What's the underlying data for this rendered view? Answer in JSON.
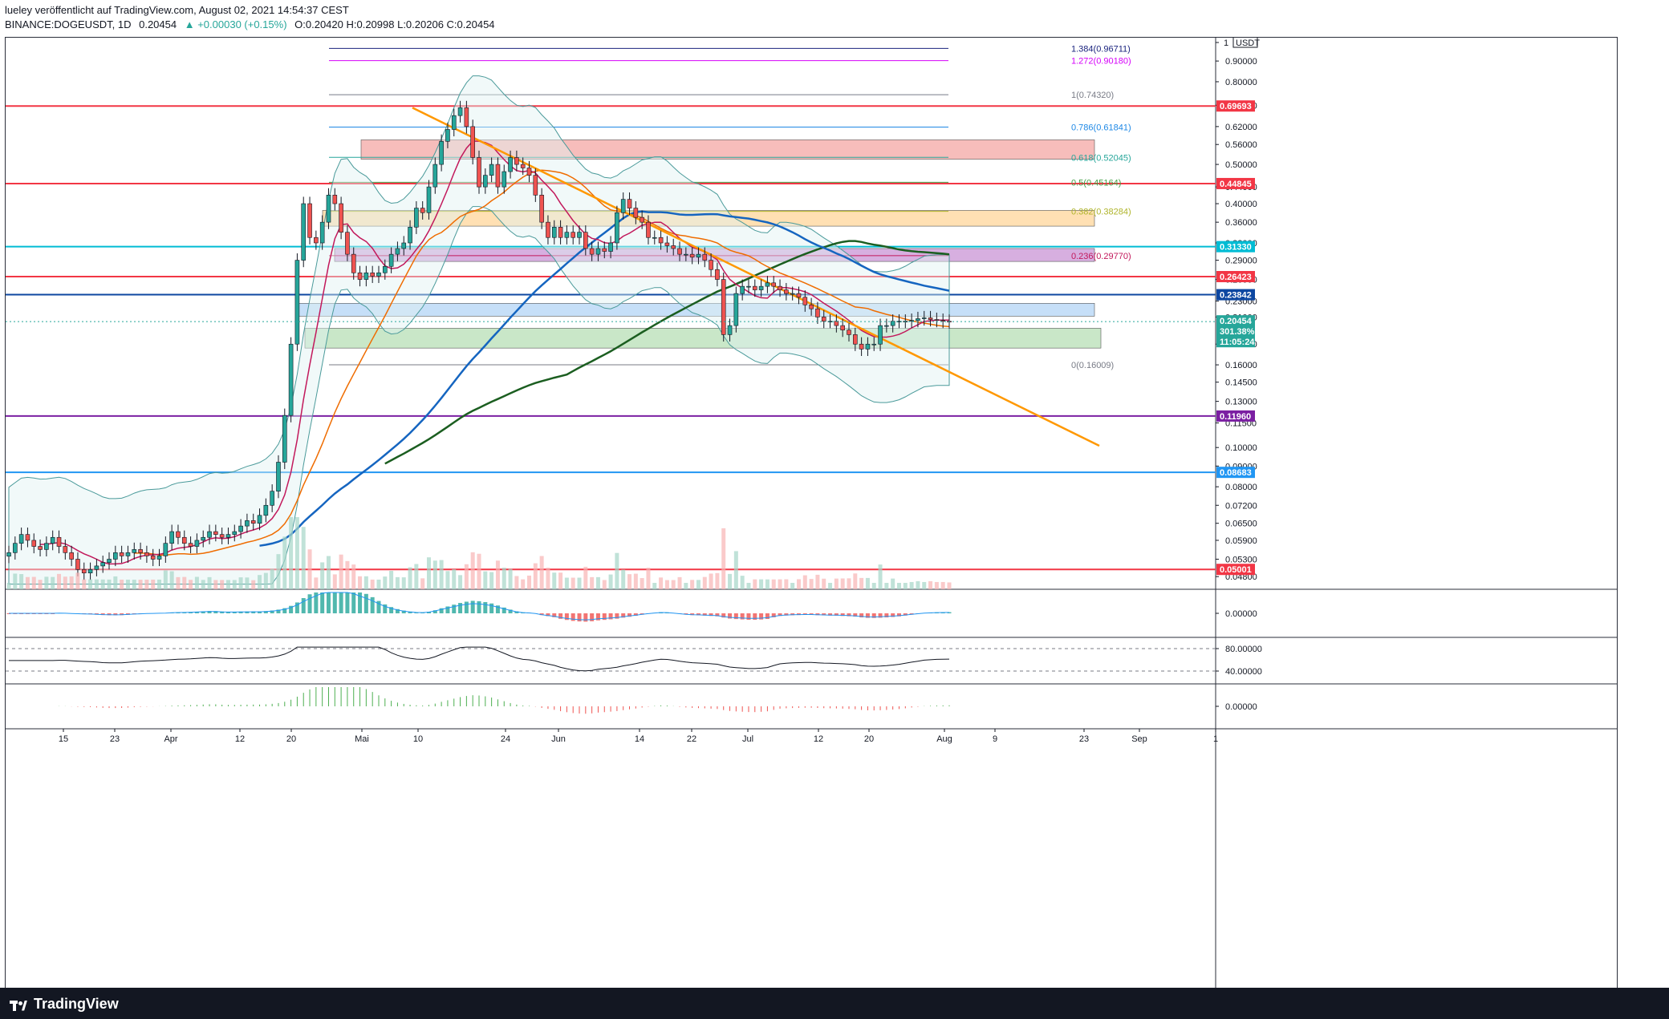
{
  "header": {
    "line1": "lueley veröffentlicht auf TradingView.com, August 02, 2021 14:54:37 CEST",
    "symbol": "BINANCE:DOGEUSDT, 1D",
    "last": "0.20454",
    "change": "▲ +0.00030 (+0.15%)",
    "ohlc": "O:0.20420 H:0.20998 L:0.20206 C:0.20454"
  },
  "footer": {
    "brand": "TradingView",
    "logo_icon": "tradingview-logo-icon"
  },
  "chart_data": {
    "type": "candlestick",
    "symbol": "BINANCE:DOGEUSDT",
    "interval": "1D",
    "currency": "USDT",
    "y_scale": "log",
    "ylim": [
      0.045,
      1.0
    ],
    "price_ticks": [
      "1 USDT",
      "0.90000",
      "0.80000",
      "0.70000",
      "0.62000",
      "0.56000",
      "0.50000",
      "0.44000",
      "0.40000",
      "0.36000",
      "0.32000",
      "0.29000",
      "0.26000",
      "0.23000",
      "0.21000",
      "0.18000",
      "0.16000",
      "0.14500",
      "0.13000",
      "0.11500",
      "0.10000",
      "0.09000",
      "0.08000",
      "0.07200",
      "0.06500",
      "0.05900",
      "0.05300",
      "0.04800"
    ],
    "x_ticks": [
      "15",
      "23",
      "Apr",
      "12",
      "20",
      "Mai",
      "10",
      "24",
      "Jun",
      "14",
      "22",
      "Jul",
      "12",
      "20",
      "Aug",
      "9",
      "23",
      "Sep",
      "1"
    ],
    "last_price": {
      "value": "0.20454",
      "pct": "301.38%",
      "countdown": "11:05:24"
    },
    "horizontal_levels": [
      {
        "value": "0.69693",
        "color": "#f23645"
      },
      {
        "value": "0.44845",
        "color": "#f23645"
      },
      {
        "value": "0.31330",
        "color": "#00bcd4"
      },
      {
        "value": "0.26423",
        "color": "#f23645"
      },
      {
        "value": "0.23842",
        "color": "#0d47a1"
      },
      {
        "value": "0.11960",
        "color": "#7b1fa2"
      },
      {
        "value": "0.08683",
        "color": "#2196f3"
      },
      {
        "value": "0.05001",
        "color": "#f23645"
      }
    ],
    "fib_levels": [
      {
        "label": "1.384(0.96711)",
        "value": 0.96711,
        "color": "#1a237e"
      },
      {
        "label": "1.272(0.90180)",
        "value": 0.9018,
        "color": "#d500f9"
      },
      {
        "label": "1(0.74320)",
        "value": 0.7432,
        "color": "#787b86"
      },
      {
        "label": "0.786(0.61841)",
        "value": 0.61841,
        "color": "#1e88e5"
      },
      {
        "label": "0.618(0.52045)",
        "value": 0.52045,
        "color": "#26a69a"
      },
      {
        "label": "0.5(0.45164)",
        "value": 0.45164,
        "color": "#43a047"
      },
      {
        "label": "0.382(0.38284)",
        "value": 0.38284,
        "color": "#afb42b"
      },
      {
        "label": "0.236(0.29770)",
        "value": 0.2977,
        "color": "#c2185b"
      },
      {
        "label": "0(0.16009)",
        "value": 0.16009,
        "color": "#787b86"
      }
    ],
    "zones": [
      {
        "name": "red-zone",
        "top": 0.575,
        "bottom": 0.515,
        "color": "#f4a7a4"
      },
      {
        "name": "orange-zone",
        "top": 0.385,
        "bottom": 0.352,
        "color": "#ffd59a"
      },
      {
        "name": "purple-zone",
        "top": 0.31,
        "bottom": 0.288,
        "color": "#c994d6"
      },
      {
        "name": "blue-zone",
        "top": 0.227,
        "bottom": 0.211,
        "color": "#b3d4f5"
      },
      {
        "name": "green-zone",
        "top": 0.197,
        "bottom": 0.176,
        "color": "#b7dfb5"
      }
    ],
    "close_series": [
      0.055,
      0.058,
      0.061,
      0.059,
      0.057,
      0.056,
      0.058,
      0.06,
      0.057,
      0.055,
      0.053,
      0.05,
      0.049,
      0.05,
      0.051,
      0.052,
      0.053,
      0.055,
      0.054,
      0.055,
      0.056,
      0.055,
      0.054,
      0.053,
      0.054,
      0.058,
      0.062,
      0.06,
      0.058,
      0.057,
      0.059,
      0.06,
      0.062,
      0.061,
      0.06,
      0.061,
      0.062,
      0.064,
      0.066,
      0.065,
      0.068,
      0.072,
      0.078,
      0.092,
      0.12,
      0.18,
      0.29,
      0.4,
      0.33,
      0.32,
      0.36,
      0.42,
      0.4,
      0.34,
      0.3,
      0.27,
      0.26,
      0.27,
      0.265,
      0.27,
      0.28,
      0.3,
      0.31,
      0.32,
      0.35,
      0.39,
      0.38,
      0.44,
      0.5,
      0.57,
      0.61,
      0.66,
      0.69,
      0.62,
      0.52,
      0.44,
      0.47,
      0.5,
      0.44,
      0.48,
      0.52,
      0.5,
      0.49,
      0.47,
      0.42,
      0.36,
      0.33,
      0.35,
      0.33,
      0.34,
      0.33,
      0.34,
      0.31,
      0.3,
      0.31,
      0.305,
      0.32,
      0.38,
      0.41,
      0.39,
      0.37,
      0.36,
      0.33,
      0.33,
      0.32,
      0.315,
      0.31,
      0.3,
      0.3,
      0.295,
      0.3,
      0.29,
      0.275,
      0.26,
      0.19,
      0.2,
      0.24,
      0.25,
      0.25,
      0.245,
      0.25,
      0.255,
      0.25,
      0.245,
      0.24,
      0.24,
      0.235,
      0.225,
      0.22,
      0.21,
      0.205,
      0.205,
      0.2,
      0.195,
      0.19,
      0.18,
      0.175,
      0.18,
      0.18,
      0.2,
      0.2,
      0.205,
      0.205,
      0.205,
      0.206,
      0.208,
      0.209,
      0.207,
      0.206,
      0.205,
      0.2045
    ],
    "indicators": [
      "MACD",
      "RSI",
      "DMI/ADX"
    ],
    "macd_ticks": [
      "0.00000"
    ],
    "rsi_ticks": [
      "80.00000",
      "40.00000"
    ],
    "dmi_ticks": [
      "0.00000"
    ]
  }
}
